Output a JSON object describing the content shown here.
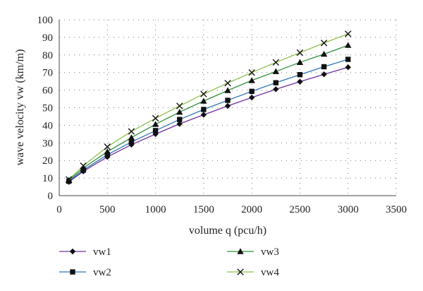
{
  "chart_data": {
    "type": "line",
    "title": "",
    "xlabel": "volume q (pcu/h)",
    "ylabel": "wave velocity vw (km/m)",
    "xlim": [
      0,
      3500
    ],
    "ylim": [
      0,
      100
    ],
    "x_ticks": [
      0,
      500,
      1000,
      1500,
      2000,
      2500,
      3000,
      3500
    ],
    "y_ticks": [
      0,
      10,
      20,
      30,
      40,
      50,
      60,
      70,
      80,
      90,
      100
    ],
    "grid": "dotted",
    "legend_position": "bottom",
    "x": [
      100,
      250,
      500,
      750,
      1000,
      1250,
      1500,
      1750,
      2000,
      2250,
      2500,
      2750,
      3000
    ],
    "series": [
      {
        "name": "vw1",
        "marker": "diamond",
        "color": "#7030a0",
        "values": [
          7.8,
          13.8,
          22.0,
          29.0,
          35.0,
          40.8,
          46.0,
          51.0,
          55.8,
          60.5,
          64.8,
          69.0,
          73.0
        ]
      },
      {
        "name": "vw2",
        "marker": "square",
        "color": "#2e75b6",
        "values": [
          8.2,
          14.5,
          23.3,
          30.5,
          37.0,
          43.3,
          49.0,
          54.2,
          59.3,
          64.2,
          68.8,
          73.3,
          77.5
        ]
      },
      {
        "name": "vw3",
        "marker": "triangle",
        "color": "#2f8f3a",
        "values": [
          8.7,
          15.7,
          25.0,
          33.0,
          40.6,
          47.5,
          53.8,
          59.8,
          65.5,
          70.6,
          75.8,
          80.5,
          85.5
        ]
      },
      {
        "name": "vw4",
        "marker": "x",
        "color": "#92c050",
        "values": [
          9.2,
          17.0,
          27.8,
          36.5,
          44.0,
          51.0,
          57.8,
          64.0,
          70.0,
          75.8,
          81.3,
          86.8,
          92.0
        ]
      }
    ]
  }
}
